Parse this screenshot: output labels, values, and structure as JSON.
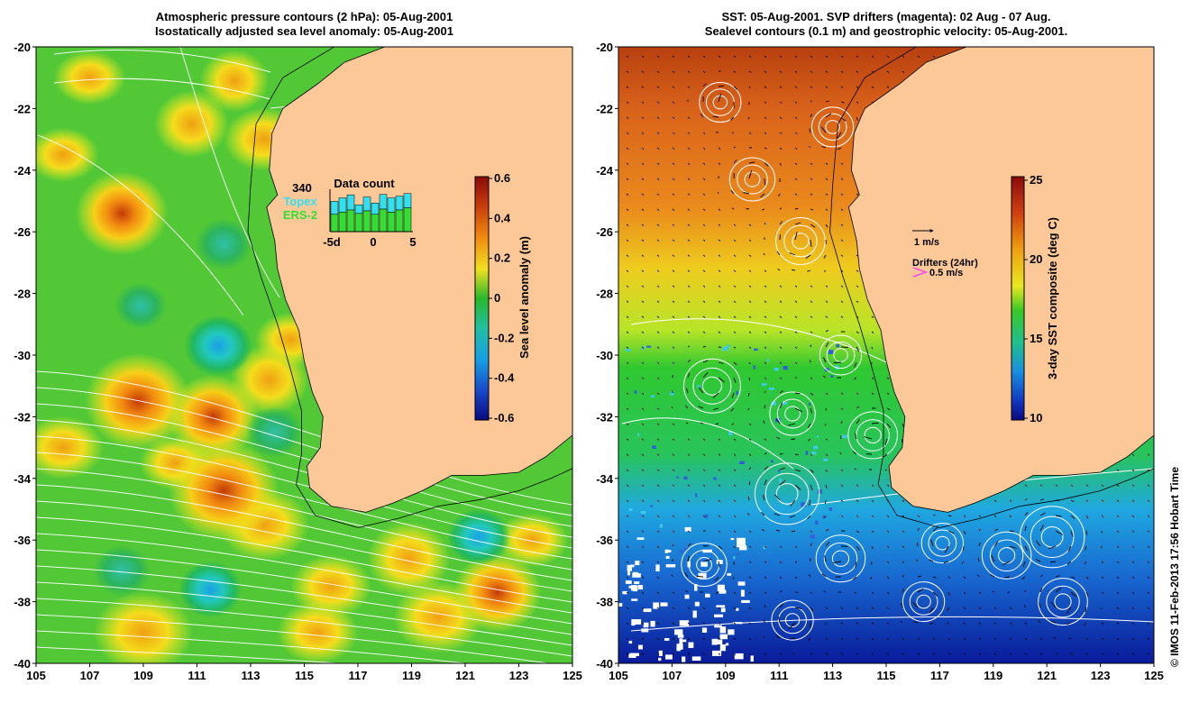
{
  "left_panel": {
    "title_line1": "Atmospheric pressure contours (2 hPa): 05-Aug-2001",
    "title_line2": "Isostatically adjusted sea level anomaly: 05-Aug-2001",
    "y_ticks": [
      "-20",
      "-22",
      "-24",
      "-26",
      "-28",
      "-30",
      "-32",
      "-34",
      "-36",
      "-38",
      "-40"
    ],
    "x_ticks": [
      "105",
      "107",
      "109",
      "111",
      "113",
      "115",
      "117",
      "119",
      "121",
      "123",
      "125"
    ],
    "colorbar": {
      "label": "Sea level anomaly (m)",
      "ticks": [
        "0.6",
        "0.4",
        "0.2",
        "0",
        "-0.2",
        "-0.4",
        "-0.6"
      ]
    },
    "data_count": {
      "title": "Data count",
      "max_label": "340",
      "topex_label": "Topex",
      "ers_label": "ERS-2",
      "x_labels": [
        "-5d",
        "0",
        "5"
      ],
      "topex_color": "#33e0f0",
      "ers_color": "#33dd33",
      "bars": [
        {
          "total": 0.7,
          "ers": 0.4
        },
        {
          "total": 0.78,
          "ers": 0.45
        },
        {
          "total": 0.85,
          "ers": 0.5
        },
        {
          "total": 0.62,
          "ers": 0.42
        },
        {
          "total": 0.8,
          "ers": 0.48
        },
        {
          "total": 0.66,
          "ers": 0.4
        },
        {
          "total": 0.86,
          "ers": 0.52
        },
        {
          "total": 0.78,
          "ers": 0.45
        },
        {
          "total": 0.82,
          "ers": 0.5
        },
        {
          "total": 0.88,
          "ers": 0.55
        }
      ]
    },
    "highs": [
      {
        "lon": 108.2,
        "lat": -25.4,
        "val": 0.35
      },
      {
        "lon": 108.8,
        "lat": -31.5,
        "val": 0.45
      },
      {
        "lon": 112.0,
        "lat": -34.4,
        "val": 0.48
      },
      {
        "lon": 111.6,
        "lat": -32.0,
        "val": 0.35
      },
      {
        "lon": 110.8,
        "lat": -22.5,
        "val": 0.22
      },
      {
        "lon": 113.7,
        "lat": -30.8,
        "val": 0.25
      },
      {
        "lon": 122.2,
        "lat": -37.7,
        "val": 0.32
      },
      {
        "lon": 118.9,
        "lat": -36.6,
        "val": 0.28
      },
      {
        "lon": 112.4,
        "lat": -21.1,
        "val": 0.18
      }
    ],
    "lows": [
      {
        "lon": 111.8,
        "lat": -29.7,
        "val": -0.2
      },
      {
        "lon": 112.0,
        "lat": -26.4,
        "val": -0.1
      },
      {
        "lon": 113.9,
        "lat": -32.5,
        "val": -0.1
      },
      {
        "lon": 121.5,
        "lat": -35.9,
        "val": -0.15
      },
      {
        "lon": 111.5,
        "lat": -37.6,
        "val": -0.15
      },
      {
        "lon": 108.2,
        "lat": -37.0,
        "val": -0.1
      },
      {
        "lon": 108.9,
        "lat": -28.4,
        "val": -0.05
      }
    ]
  },
  "right_panel": {
    "title_line1": "SST: 05-Aug-2001. SVP drifters (magenta): 02 Aug - 07 Aug.",
    "title_line2": "Sealevel contours (0.1 m) and geostrophic velocity: 05-Aug-2001.",
    "y_ticks": [
      "-20",
      "-22",
      "-24",
      "-26",
      "-28",
      "-30",
      "-32",
      "-34",
      "-36",
      "-38",
      "-40"
    ],
    "x_ticks": [
      "105",
      "107",
      "109",
      "111",
      "113",
      "115",
      "117",
      "119",
      "121",
      "123",
      "125"
    ],
    "colorbar": {
      "label": "3-day SST composite (deg C)",
      "ticks": [
        "25",
        "20",
        "15",
        "10"
      ]
    },
    "velocity_scale_label": "1 m/s",
    "drifters_label": "Drifters (24hr)",
    "drifter_scale_label": "0.5 m/s",
    "drifter_color": "#ff33ff",
    "eddies": [
      {
        "lon": 108.5,
        "lat": -31.0,
        "r": 30
      },
      {
        "lon": 111.5,
        "lat": -31.9,
        "r": 24
      },
      {
        "lon": 114.5,
        "lat": -32.6,
        "r": 26
      },
      {
        "lon": 111.3,
        "lat": -34.5,
        "r": 34
      },
      {
        "lon": 121.2,
        "lat": -35.9,
        "r": 34
      },
      {
        "lon": 119.5,
        "lat": -36.5,
        "r": 26
      },
      {
        "lon": 117.1,
        "lat": -36.1,
        "r": 22
      },
      {
        "lon": 113.3,
        "lat": -36.6,
        "r": 26
      },
      {
        "lon": 108.2,
        "lat": -36.8,
        "r": 24
      },
      {
        "lon": 111.8,
        "lat": -26.3,
        "r": 26
      },
      {
        "lon": 113.3,
        "lat": -30.0,
        "r": 22
      },
      {
        "lon": 110.0,
        "lat": -24.3,
        "r": 24
      },
      {
        "lon": 113.0,
        "lat": -22.6,
        "r": 22
      },
      {
        "lon": 108.8,
        "lat": -21.8,
        "r": 22
      },
      {
        "lon": 121.6,
        "lat": -38.0,
        "r": 26
      },
      {
        "lon": 116.4,
        "lat": -38.0,
        "r": 22
      },
      {
        "lon": 111.5,
        "lat": -38.6,
        "r": 22
      }
    ]
  },
  "credit": "© IMOS 11-Feb-2013 17:56 Hobart Time"
}
